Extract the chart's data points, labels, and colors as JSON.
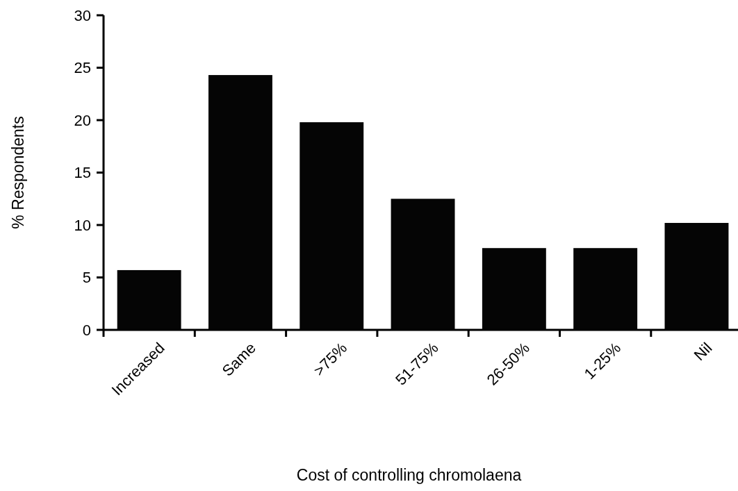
{
  "chart_data": {
    "type": "bar",
    "xlabel": "Cost of controlling chromolaena",
    "ylabel": "% Respondents",
    "categories": [
      "Increased",
      "Same",
      ">75%",
      "51-75%",
      "26-50%",
      "1-25%",
      "Nil"
    ],
    "values": [
      5.7,
      24.3,
      19.8,
      12.5,
      7.8,
      7.8,
      10.2
    ],
    "color": "#050505",
    "ylim": [
      0,
      30
    ],
    "yticks": [
      0,
      5,
      10,
      15,
      20,
      25,
      30
    ],
    "grid": false
  }
}
